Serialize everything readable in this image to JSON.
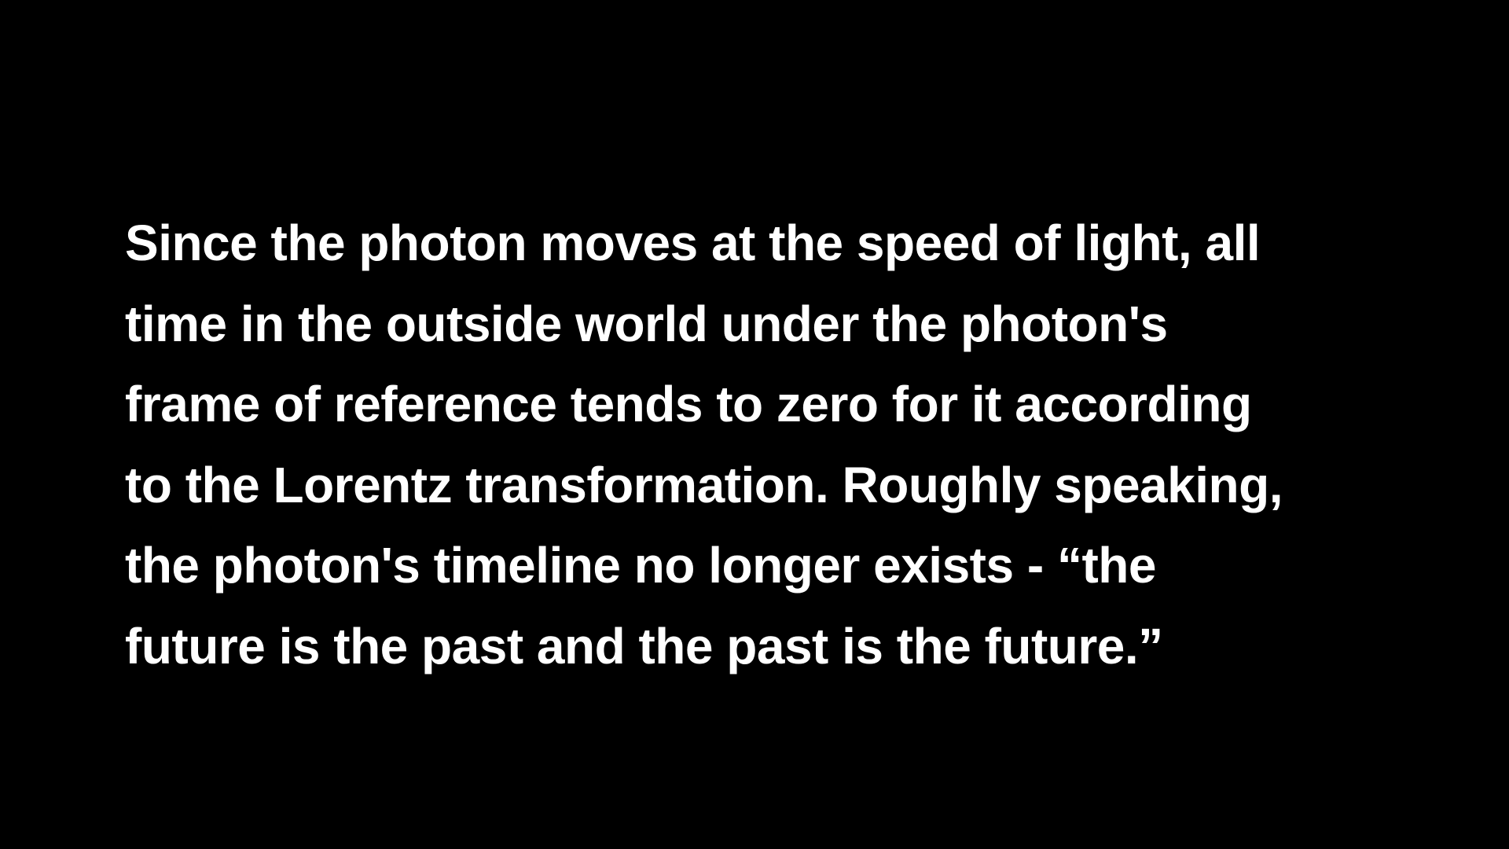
{
  "slide": {
    "background_color": "#000000",
    "text_color": "#ffffff",
    "lines": [
      "Since the photon moves at the speed of light, all",
      "time in the outside world under the photon's",
      "frame of reference tends to zero for it according",
      "to the Lorentz transformation. Roughly speaking,",
      "the photon's timeline no longer exists - “the",
      "future is the past and the past is the future.”"
    ]
  }
}
